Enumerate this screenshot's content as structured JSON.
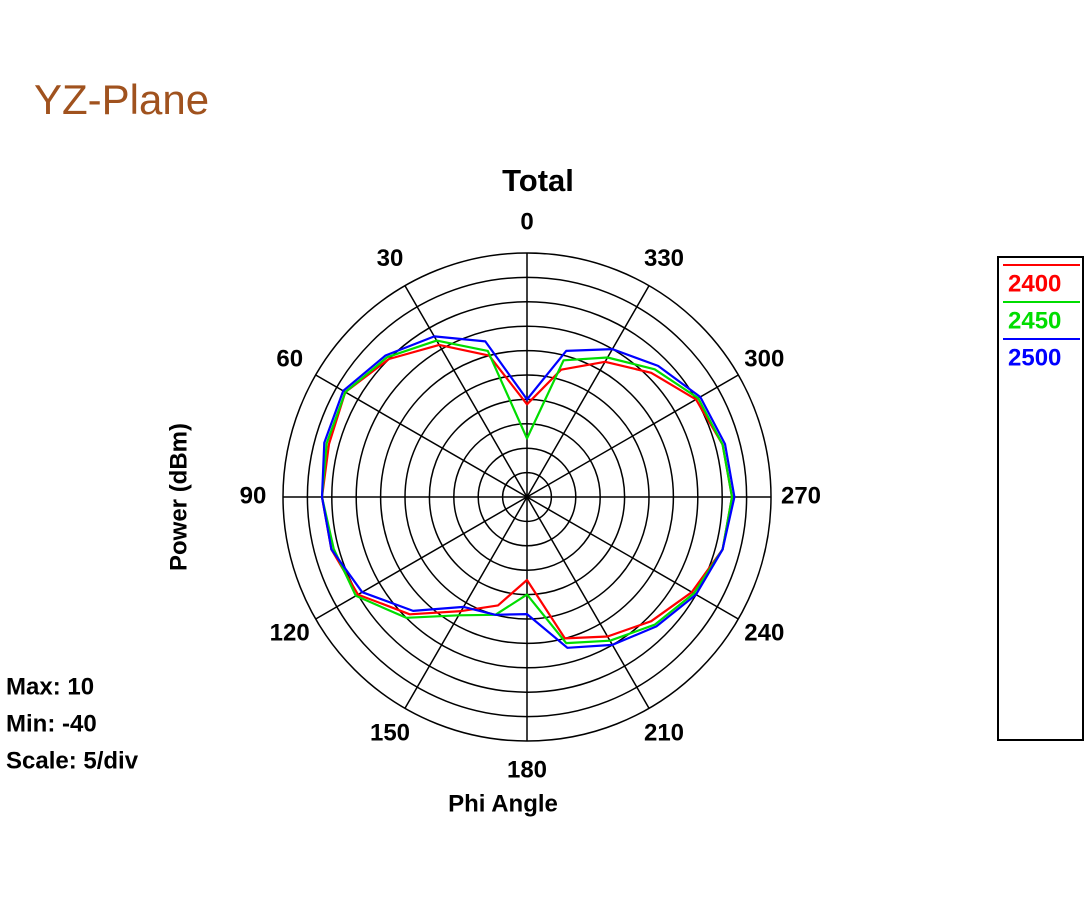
{
  "page_title": "YZ-Plane",
  "chart_data": {
    "type": "polar",
    "title": "Total",
    "radial_axis_label": "Power (dBm)",
    "angle_axis_label": "Phi Angle",
    "annotations": [
      "Max: 10",
      "Min: -40",
      "Scale: 5/div"
    ],
    "direction": "counterclockwise",
    "zero_location": "top",
    "rlim": [
      -40,
      10
    ],
    "rticks": [
      -40,
      -35,
      -30,
      -25,
      -20,
      -15,
      -10,
      -5,
      0,
      5,
      10
    ],
    "thetaticks": [
      0,
      30,
      60,
      90,
      120,
      150,
      180,
      210,
      240,
      270,
      300,
      330
    ],
    "theta": [
      0,
      15,
      30,
      45,
      60,
      75,
      90,
      105,
      120,
      135,
      150,
      165,
      180,
      195,
      210,
      225,
      240,
      255,
      270,
      285,
      300,
      315,
      330,
      345
    ],
    "series": [
      {
        "name": "2400",
        "color": "#ff0000",
        "values": [
          -21,
          -10,
          -4,
          0,
          3,
          2,
          2,
          1.5,
          0,
          -6,
          -13,
          -17,
          -23,
          -10,
          -7,
          -4,
          -1,
          1.5,
          2,
          1.5,
          0,
          -4,
          -8,
          -13
        ]
      },
      {
        "name": "2450",
        "color": "#00dd00",
        "values": [
          -28,
          -9,
          -3,
          0.5,
          3,
          2.5,
          2,
          1,
          0.5,
          -5,
          -12,
          -15,
          -20,
          -9,
          -6,
          -3,
          -0.5,
          1.5,
          2,
          1.5,
          0.5,
          -3,
          -7,
          -11
        ]
      },
      {
        "name": "2500",
        "color": "#0000ff",
        "values": [
          -20,
          -7,
          -2,
          1,
          3.5,
          3,
          2,
          1.5,
          -1,
          -7,
          -14,
          -15,
          -16,
          -8,
          -5,
          -2.5,
          0,
          1.5,
          2.5,
          2,
          1,
          -2,
          -5,
          -9
        ]
      }
    ]
  }
}
